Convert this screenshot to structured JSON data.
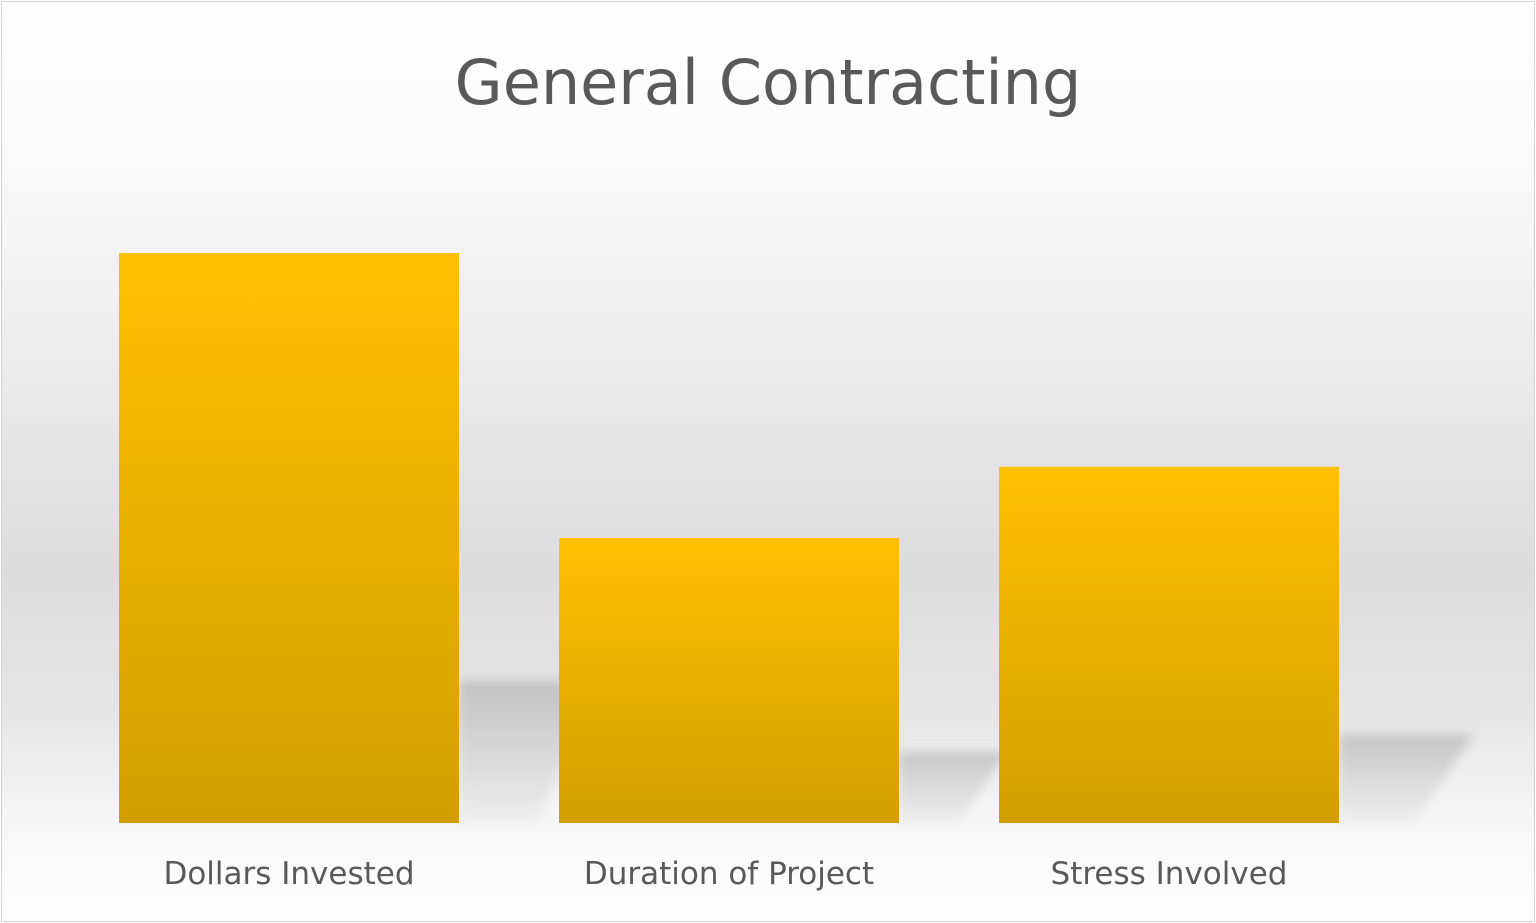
{
  "chart_data": {
    "type": "bar",
    "title": "General Contracting",
    "categories": [
      "Dollars Invested",
      "Duration of Project",
      "Stress Involved"
    ],
    "values": [
      100,
      50,
      62.5
    ],
    "ylim": [
      0,
      100
    ],
    "xlabel": "",
    "ylabel": "",
    "grid": false,
    "legend": "none",
    "bar_color_top": "#FFC000",
    "bar_color_bottom": "#D39E00"
  }
}
